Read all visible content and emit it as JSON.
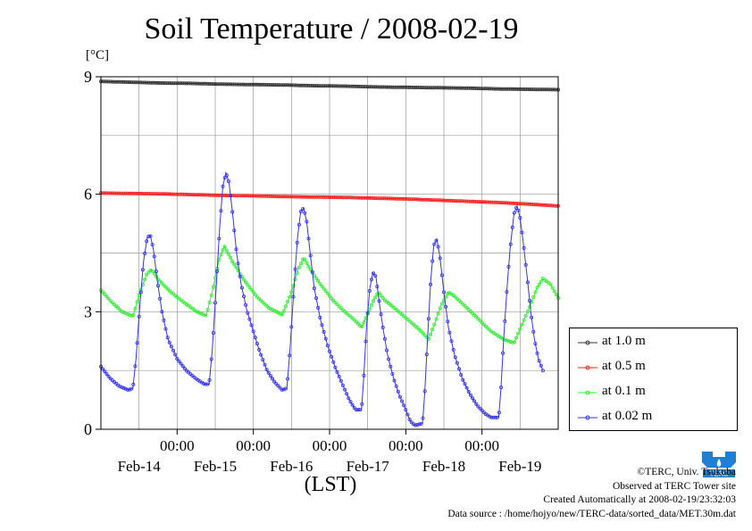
{
  "chart_data": {
    "type": "line",
    "title": "Soil Temperature / 2008-02-19",
    "ylabel": "[°C]",
    "xlabel": "(LST)",
    "ylim": [
      0,
      9
    ],
    "yticks": [
      0,
      3,
      6,
      9
    ],
    "x_tick_labels": [
      "00:00",
      "00:00",
      "00:00",
      "00:00",
      "00:00"
    ],
    "date_labels": [
      "Feb-14",
      "Feb-15",
      "Feb-16",
      "Feb-17",
      "Feb-18",
      "Feb-19"
    ],
    "legend_position": "right",
    "grid": true,
    "series": [
      {
        "name": "at 1.0 m",
        "color": "#333333",
        "points": [
          [
            0,
            8.88
          ],
          [
            1,
            8.86
          ],
          [
            2,
            8.84
          ],
          [
            3,
            8.83
          ],
          [
            4,
            8.81
          ],
          [
            5,
            8.8
          ],
          [
            6,
            8.79
          ],
          [
            7,
            8.77
          ],
          [
            8,
            8.76
          ],
          [
            9,
            8.74
          ],
          [
            10,
            8.73
          ],
          [
            11,
            8.72
          ],
          [
            12,
            8.71
          ],
          [
            13,
            8.69
          ],
          [
            14,
            8.68
          ],
          [
            15,
            8.67
          ]
        ]
      },
      {
        "name": "at 0.5 m",
        "color": "#ff2020",
        "points": [
          [
            0,
            6.03
          ],
          [
            1,
            6.02
          ],
          [
            2,
            6.01
          ],
          [
            3,
            5.99
          ],
          [
            4,
            5.97
          ],
          [
            5,
            5.96
          ],
          [
            6,
            5.94
          ],
          [
            7,
            5.93
          ],
          [
            8,
            5.92
          ],
          [
            9,
            5.9
          ],
          [
            10,
            5.88
          ],
          [
            11,
            5.85
          ],
          [
            12,
            5.82
          ],
          [
            13,
            5.79
          ],
          [
            14,
            5.75
          ],
          [
            15,
            5.7
          ]
        ]
      },
      {
        "name": "at 0.1 m",
        "color": "#33ee33",
        "points": [
          [
            0,
            3.55
          ],
          [
            0.35,
            3.25
          ],
          [
            0.7,
            3.0
          ],
          [
            1.05,
            2.88
          ],
          [
            1.28,
            3.5
          ],
          [
            1.5,
            3.95
          ],
          [
            1.65,
            4.08
          ],
          [
            1.9,
            3.8
          ],
          [
            2.3,
            3.5
          ],
          [
            2.7,
            3.25
          ],
          [
            3.15,
            3.0
          ],
          [
            3.45,
            2.9
          ],
          [
            3.65,
            3.5
          ],
          [
            3.88,
            4.35
          ],
          [
            4.05,
            4.68
          ],
          [
            4.3,
            4.3
          ],
          [
            4.7,
            3.8
          ],
          [
            5.1,
            3.4
          ],
          [
            5.5,
            3.1
          ],
          [
            5.95,
            2.92
          ],
          [
            6.25,
            3.5
          ],
          [
            6.48,
            4.1
          ],
          [
            6.65,
            4.38
          ],
          [
            6.85,
            4.1
          ],
          [
            7.2,
            3.7
          ],
          [
            7.6,
            3.3
          ],
          [
            8.0,
            3.0
          ],
          [
            8.3,
            2.8
          ],
          [
            8.55,
            2.6
          ],
          [
            8.75,
            2.95
          ],
          [
            8.95,
            3.3
          ],
          [
            9.1,
            3.5
          ],
          [
            9.3,
            3.3
          ],
          [
            9.7,
            3.05
          ],
          [
            10.1,
            2.78
          ],
          [
            10.5,
            2.5
          ],
          [
            10.75,
            2.3
          ],
          [
            10.95,
            2.7
          ],
          [
            11.15,
            3.15
          ],
          [
            11.4,
            3.5
          ],
          [
            11.6,
            3.4
          ],
          [
            12.0,
            3.1
          ],
          [
            12.4,
            2.8
          ],
          [
            12.8,
            2.5
          ],
          [
            13.2,
            2.3
          ],
          [
            13.55,
            2.2
          ],
          [
            13.8,
            2.65
          ],
          [
            14.05,
            3.1
          ],
          [
            14.3,
            3.6
          ],
          [
            14.5,
            3.85
          ],
          [
            14.75,
            3.7
          ],
          [
            15.0,
            3.35
          ]
        ]
      },
      {
        "name": "at 0.02 m",
        "color": "#3333ee",
        "points": [
          [
            0,
            1.6
          ],
          [
            0.3,
            1.3
          ],
          [
            0.6,
            1.1
          ],
          [
            0.9,
            1.0
          ],
          [
            1.05,
            1.05
          ],
          [
            1.15,
            1.8
          ],
          [
            1.28,
            3.2
          ],
          [
            1.4,
            4.3
          ],
          [
            1.52,
            4.9
          ],
          [
            1.62,
            4.95
          ],
          [
            1.72,
            4.6
          ],
          [
            1.85,
            3.8
          ],
          [
            2.0,
            3.0
          ],
          [
            2.2,
            2.3
          ],
          [
            2.5,
            1.8
          ],
          [
            2.8,
            1.5
          ],
          [
            3.1,
            1.3
          ],
          [
            3.4,
            1.15
          ],
          [
            3.55,
            1.15
          ],
          [
            3.65,
            2.0
          ],
          [
            3.78,
            3.6
          ],
          [
            3.9,
            5.2
          ],
          [
            4.0,
            6.2
          ],
          [
            4.1,
            6.55
          ],
          [
            4.2,
            6.3
          ],
          [
            4.32,
            5.5
          ],
          [
            4.45,
            4.5
          ],
          [
            4.6,
            3.7
          ],
          [
            4.8,
            3.0
          ],
          [
            5.0,
            2.5
          ],
          [
            5.2,
            2.0
          ],
          [
            5.45,
            1.5
          ],
          [
            5.7,
            1.2
          ],
          [
            5.95,
            1.0
          ],
          [
            6.1,
            1.05
          ],
          [
            6.2,
            2.0
          ],
          [
            6.33,
            3.6
          ],
          [
            6.45,
            4.9
          ],
          [
            6.55,
            5.55
          ],
          [
            6.65,
            5.65
          ],
          [
            6.75,
            5.3
          ],
          [
            6.88,
            4.4
          ],
          [
            7.0,
            3.6
          ],
          [
            7.2,
            2.8
          ],
          [
            7.45,
            2.1
          ],
          [
            7.7,
            1.55
          ],
          [
            7.95,
            1.1
          ],
          [
            8.15,
            0.75
          ],
          [
            8.35,
            0.5
          ],
          [
            8.55,
            0.5
          ],
          [
            8.62,
            1.3
          ],
          [
            8.72,
            2.7
          ],
          [
            8.82,
            3.6
          ],
          [
            8.92,
            4.0
          ],
          [
            9.02,
            3.9
          ],
          [
            9.12,
            3.3
          ],
          [
            9.25,
            2.6
          ],
          [
            9.4,
            1.9
          ],
          [
            9.6,
            1.3
          ],
          [
            9.8,
            0.85
          ],
          [
            10.0,
            0.5
          ],
          [
            10.15,
            0.2
          ],
          [
            10.3,
            0.1
          ],
          [
            10.55,
            0.15
          ],
          [
            10.62,
            0.9
          ],
          [
            10.72,
            2.4
          ],
          [
            10.82,
            3.8
          ],
          [
            10.92,
            4.7
          ],
          [
            11.02,
            4.85
          ],
          [
            11.12,
            4.4
          ],
          [
            11.25,
            3.5
          ],
          [
            11.4,
            2.6
          ],
          [
            11.6,
            1.9
          ],
          [
            11.85,
            1.3
          ],
          [
            12.1,
            0.9
          ],
          [
            12.35,
            0.6
          ],
          [
            12.6,
            0.4
          ],
          [
            12.8,
            0.3
          ],
          [
            13.05,
            0.3
          ],
          [
            13.12,
            1.0
          ],
          [
            13.22,
            2.4
          ],
          [
            13.32,
            3.6
          ],
          [
            13.42,
            4.6
          ],
          [
            13.55,
            5.5
          ],
          [
            13.65,
            5.7
          ],
          [
            13.75,
            5.4
          ],
          [
            13.85,
            4.8
          ],
          [
            13.98,
            3.9
          ],
          [
            14.1,
            3.0
          ],
          [
            14.22,
            2.3
          ],
          [
            14.35,
            1.8
          ],
          [
            14.5,
            1.5
          ]
        ]
      }
    ]
  },
  "legend": {
    "items": [
      "at 1.0 m",
      "at 0.5 m",
      "at 0.1 m",
      "at 0.02 m"
    ],
    "colors": [
      "#333333",
      "#ff2020",
      "#33ee33",
      "#3333ee"
    ]
  },
  "footer": {
    "copyright": "©TERC, Univ. Tsukuba",
    "observed": "Observed at TERC Tower site",
    "created": "Created Automatically at 2008-02-19/23:32:03",
    "source": "Data source : /home/hojyo/new/TERC-data/sorted_data/MET.30m.dat"
  },
  "logo": {
    "icon": "terc-logo-icon",
    "text": "TERC"
  }
}
